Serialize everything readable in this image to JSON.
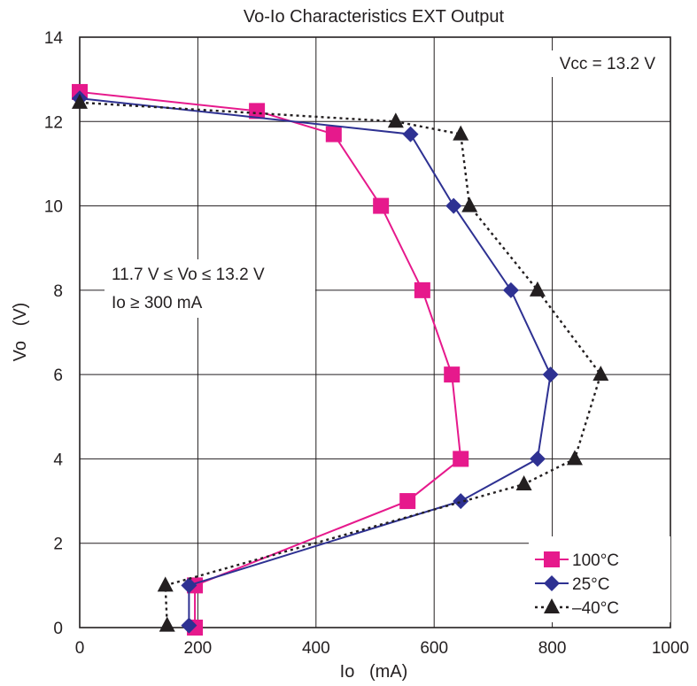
{
  "chart_data": {
    "type": "line",
    "title": "Vo-Io Characteristics  EXT Output",
    "xlabel": "Io   (mA)",
    "ylabel": "Vo   (V)",
    "xlim": [
      0,
      1000
    ],
    "ylim": [
      0,
      14
    ],
    "x_ticks": [
      0,
      200,
      400,
      600,
      800,
      1000
    ],
    "y_ticks": [
      0,
      2,
      4,
      6,
      8,
      10,
      12,
      14
    ],
    "grid": true,
    "legend_position": "bottom-right",
    "annotations": {
      "vcc": "Vcc = 13.2 V",
      "range_line1": "11.7 V ≤ Vo ≤ 13.2 V",
      "range_line2": "Io ≥ 300 mA"
    },
    "series": [
      {
        "name": "100°C",
        "color": "#e6198c",
        "marker": "square",
        "line_style": "solid",
        "points": [
          [
            0,
            12.7
          ],
          [
            300,
            12.25
          ],
          [
            430,
            11.7
          ],
          [
            510,
            10.0
          ],
          [
            580,
            8.0
          ],
          [
            630,
            6.0
          ],
          [
            645,
            4.0
          ],
          [
            555,
            3.0
          ],
          [
            195,
            1.0
          ],
          [
            195,
            0.0
          ]
        ]
      },
      {
        "name": "25°C",
        "color": "#2e3192",
        "marker": "diamond",
        "line_style": "solid",
        "points": [
          [
            0,
            12.55
          ],
          [
            560,
            11.7
          ],
          [
            633,
            10.0
          ],
          [
            730,
            8.0
          ],
          [
            797,
            6.0
          ],
          [
            775,
            4.0
          ],
          [
            645,
            3.0
          ],
          [
            185,
            1.0
          ],
          [
            185,
            0.05
          ]
        ]
      },
      {
        "name": "–40°C",
        "color": "#231f20",
        "marker": "triangle",
        "line_style": "dotted",
        "points": [
          [
            0,
            12.45
          ],
          [
            535,
            12.0
          ],
          [
            645,
            11.7
          ],
          [
            660,
            10.0
          ],
          [
            775,
            8.0
          ],
          [
            882,
            6.0
          ],
          [
            838,
            4.0
          ],
          [
            752,
            3.4
          ],
          [
            145,
            1.0
          ],
          [
            148,
            0.05
          ]
        ]
      }
    ]
  }
}
